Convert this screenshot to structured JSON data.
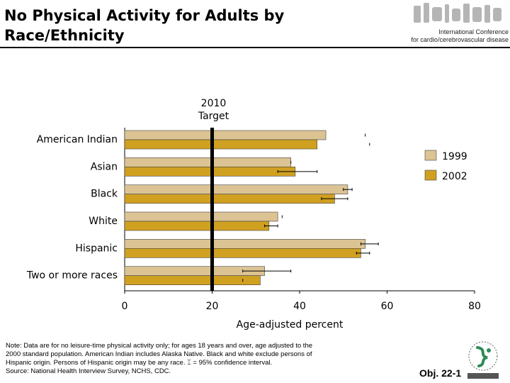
{
  "header": {
    "title_line1": "No Physical Activity for Adults by",
    "title_line2": "Race/Ethnicity",
    "conference_line1": "International Conference",
    "conference_line2": "for cardio/cerebrovascular disease"
  },
  "chart_data": {
    "type": "bar",
    "orientation": "horizontal",
    "categories": [
      "American Indian",
      "Asian",
      "Black",
      "White",
      "Hispanic",
      "Two or more races"
    ],
    "series": [
      {
        "name": "1999",
        "color": "#dbc393",
        "values": [
          46,
          38,
          51,
          35,
          55,
          32
        ],
        "ci": [
          [
            55,
            55
          ],
          [
            38,
            38
          ],
          [
            50,
            52
          ],
          [
            36,
            36
          ],
          [
            54,
            58
          ],
          [
            27,
            38
          ]
        ]
      },
      {
        "name": "2002",
        "color": "#d0a020",
        "values": [
          44,
          39,
          48,
          33,
          54,
          31
        ],
        "ci": [
          [
            56,
            56
          ],
          [
            35,
            44
          ],
          [
            45,
            51
          ],
          [
            32,
            35
          ],
          [
            53,
            56
          ],
          [
            27,
            27
          ]
        ]
      }
    ],
    "xlim": [
      0,
      80
    ],
    "xticks": [
      0,
      20,
      40,
      60,
      80
    ],
    "xlabel": "Age-adjusted percent",
    "target": {
      "value": 20,
      "label_line1": "2010",
      "label_line2": "Target"
    },
    "legend_position": "right"
  },
  "footer": {
    "note_lines": [
      "Note:  Data are for no leisure-time physical activity only; for ages 18 years and over, age adjusted to the",
      "2000 standard population. American Indian includes Alaska Native. Black and white exclude persons of",
      "Hispanic origin. Persons of Hispanic origin may be any race. ⌶ = 95% confidence interval.",
      "Source: National Health Interview Survey, NCHS, CDC."
    ],
    "objective": "Obj. 22-1"
  },
  "icons": {
    "logo": "conference-logo-icon",
    "agency": "agency-emblem-icon"
  }
}
